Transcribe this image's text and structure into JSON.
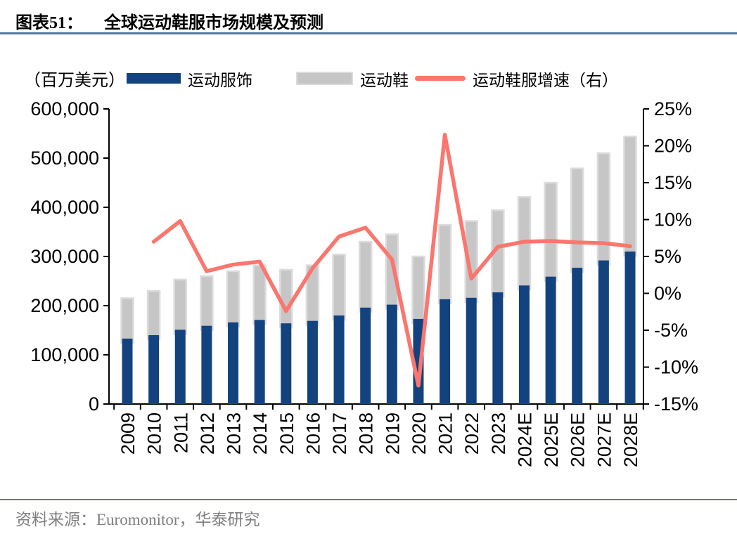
{
  "figure": {
    "label": "图表51：",
    "title": "全球运动鞋服市场规模及预测",
    "unit_label": "（百万美元）",
    "source": "资料来源：Euromonitor，华泰研究"
  },
  "legend": [
    {
      "label": "运动服饰",
      "type": "bar",
      "color": "#13437f"
    },
    {
      "label": "运动鞋",
      "type": "bar",
      "color": "#c6c6c6"
    },
    {
      "label": "运动鞋服增速（右）",
      "type": "line",
      "color": "#fa766e"
    }
  ],
  "colors": {
    "apparel_bar": "#13437f",
    "footwear_bar": "#c6c6c6",
    "footwear_bar_border": "#dcdcdc",
    "growth_line": "#fa766e",
    "rule": "#527c9e",
    "axis": "#000000",
    "source_text": "#7f7f7f"
  },
  "chart_data": {
    "type": "bar",
    "subtype": "stacked-bars-with-line",
    "title": "全球运动鞋服市场规模及预测",
    "unit": "百万美元",
    "grid": false,
    "legend_position": "top",
    "categories": [
      "2009",
      "2010",
      "2011",
      "2012",
      "2013",
      "2014",
      "2015",
      "2016",
      "2017",
      "2018",
      "2019",
      "2020",
      "2021",
      "2022",
      "2023",
      "2024E",
      "2025E",
      "2026E",
      "2027E",
      "2028E"
    ],
    "series": [
      {
        "name": "运动服饰",
        "type": "bar",
        "stack": "market",
        "axis": "left",
        "color": "#13437f",
        "values": [
          133000,
          140000,
          151000,
          159000,
          166000,
          171000,
          164000,
          169000,
          180000,
          196000,
          202000,
          173000,
          213000,
          216000,
          227000,
          241000,
          259000,
          277000,
          292000,
          310000
        ]
      },
      {
        "name": "运动鞋",
        "type": "bar",
        "stack": "market",
        "axis": "left",
        "color": "#c6c6c6",
        "values": [
          82000,
          90000,
          102000,
          101000,
          104000,
          111000,
          109000,
          113000,
          124000,
          134000,
          143000,
          127000,
          151000,
          156000,
          167000,
          180000,
          191000,
          202000,
          218000,
          234000
        ]
      },
      {
        "name": "运动鞋服增速（右）",
        "type": "line",
        "axis": "right",
        "color": "#fa766e",
        "values": [
          null,
          7.0,
          9.8,
          3.0,
          3.9,
          4.3,
          -2.4,
          3.4,
          7.7,
          8.9,
          4.6,
          -12.5,
          21.5,
          2.0,
          6.3,
          7.0,
          7.1,
          6.9,
          6.8,
          6.4
        ]
      }
    ],
    "left_axis": {
      "min": 0,
      "max": 600000,
      "step": 100000,
      "tick_labels": [
        "0",
        "100,000",
        "200,000",
        "300,000",
        "400,000",
        "500,000",
        "600,000"
      ]
    },
    "right_axis": {
      "min": -15,
      "max": 25,
      "step": 5,
      "tick_labels": [
        "-15%",
        "-10%",
        "-5%",
        "0%",
        "5%",
        "10%",
        "15%",
        "20%",
        "25%"
      ]
    }
  }
}
